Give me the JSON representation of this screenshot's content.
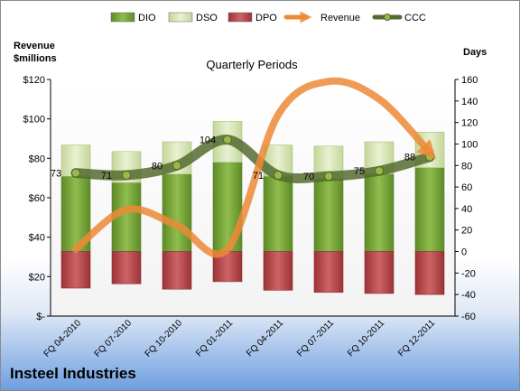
{
  "chart_data": {
    "type": "bar",
    "title": "Quarterly Periods",
    "company": "Insteel Industries",
    "left_axis": {
      "title_line1": "Revenue",
      "title_line2": "$millions",
      "ylim": [
        0,
        120
      ],
      "ticks": [
        0,
        20,
        40,
        60,
        80,
        100,
        120
      ],
      "tick_labels": [
        "$-",
        "$20",
        "$40",
        "$60",
        "$80",
        "$100",
        "$120"
      ]
    },
    "right_axis": {
      "title": "Days",
      "ylim": [
        -60,
        160
      ],
      "ticks": [
        -60,
        -40,
        -20,
        0,
        20,
        40,
        60,
        80,
        100,
        120,
        140,
        160
      ],
      "tick_labels": [
        "-60",
        "-40",
        "-20",
        "0",
        "20",
        "40",
        "60",
        "80",
        "100",
        "120",
        "140",
        "160"
      ]
    },
    "categories": [
      "FQ 04-2010",
      "FQ 07-2010",
      "FQ 10-2010",
      "FQ 01-2011",
      "FQ 04-2011",
      "FQ 07-2011",
      "FQ 10-2011",
      "FQ 12-2011"
    ],
    "series": [
      {
        "name": "DIO",
        "type": "stacked-bar",
        "axis": "right",
        "color": "#77a33a",
        "values": [
          70,
          64,
          72,
          83,
          70,
          68,
          72,
          78
        ]
      },
      {
        "name": "DSO",
        "type": "stacked-bar",
        "axis": "right",
        "color": "#d7e4b1",
        "values": [
          29,
          29,
          30,
          38,
          29,
          30,
          30,
          33
        ]
      },
      {
        "name": "DPO",
        "type": "negative-bar",
        "axis": "right",
        "color": "#b8484b",
        "values": [
          -34,
          -30,
          -35,
          -28,
          -36,
          -38,
          -39,
          -40
        ]
      },
      {
        "name": "Revenue",
        "type": "line",
        "axis": "left",
        "color": "#ed8a37",
        "values": [
          34,
          54,
          46,
          34,
          102,
          119,
          110,
          83
        ]
      },
      {
        "name": "CCC",
        "type": "line",
        "axis": "right",
        "color": "#556b2f",
        "values": [
          73,
          71,
          80,
          104,
          71,
          70,
          75,
          88
        ],
        "labels": [
          "73",
          "71",
          "80",
          "104",
          "71",
          "70",
          "75",
          "88"
        ]
      }
    ],
    "legend_position": "top",
    "grid": false
  }
}
